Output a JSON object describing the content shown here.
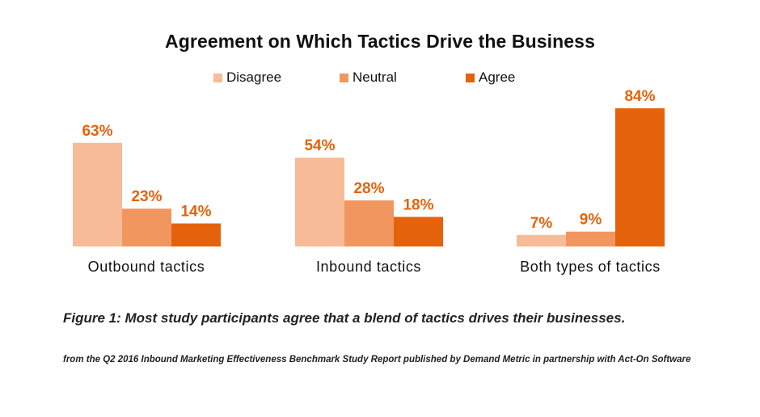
{
  "chart_data": {
    "type": "bar",
    "title": "Agreement on Which Tactics Drive the Business",
    "categories": [
      "Outbound tactics",
      "Inbound tactics",
      "Both types of tactics"
    ],
    "series": [
      {
        "name": "Disagree",
        "values": [
          63,
          54,
          7
        ],
        "labels": [
          "63%",
          "54%",
          "7%"
        ],
        "color": "#f7bb97"
      },
      {
        "name": "Neutral",
        "values": [
          23,
          28,
          9
        ],
        "labels": [
          "23%",
          "28%",
          "9%"
        ],
        "color": "#f2965f"
      },
      {
        "name": "Agree",
        "values": [
          14,
          18,
          84
        ],
        "labels": [
          "14%",
          "18%",
          "84%"
        ],
        "color": "#e4620c"
      }
    ],
    "ylim": [
      0,
      84
    ],
    "legend_position": "top-center",
    "grid": false,
    "xlabel": "",
    "ylabel": ""
  },
  "caption": "Figure 1: Most study participants agree that a blend of tactics drives their businesses.",
  "source": "from the Q2 2016 Inbound Marketing Effectiveness Benchmark Study Report published by Demand Metric in partnership with Act-On Software"
}
